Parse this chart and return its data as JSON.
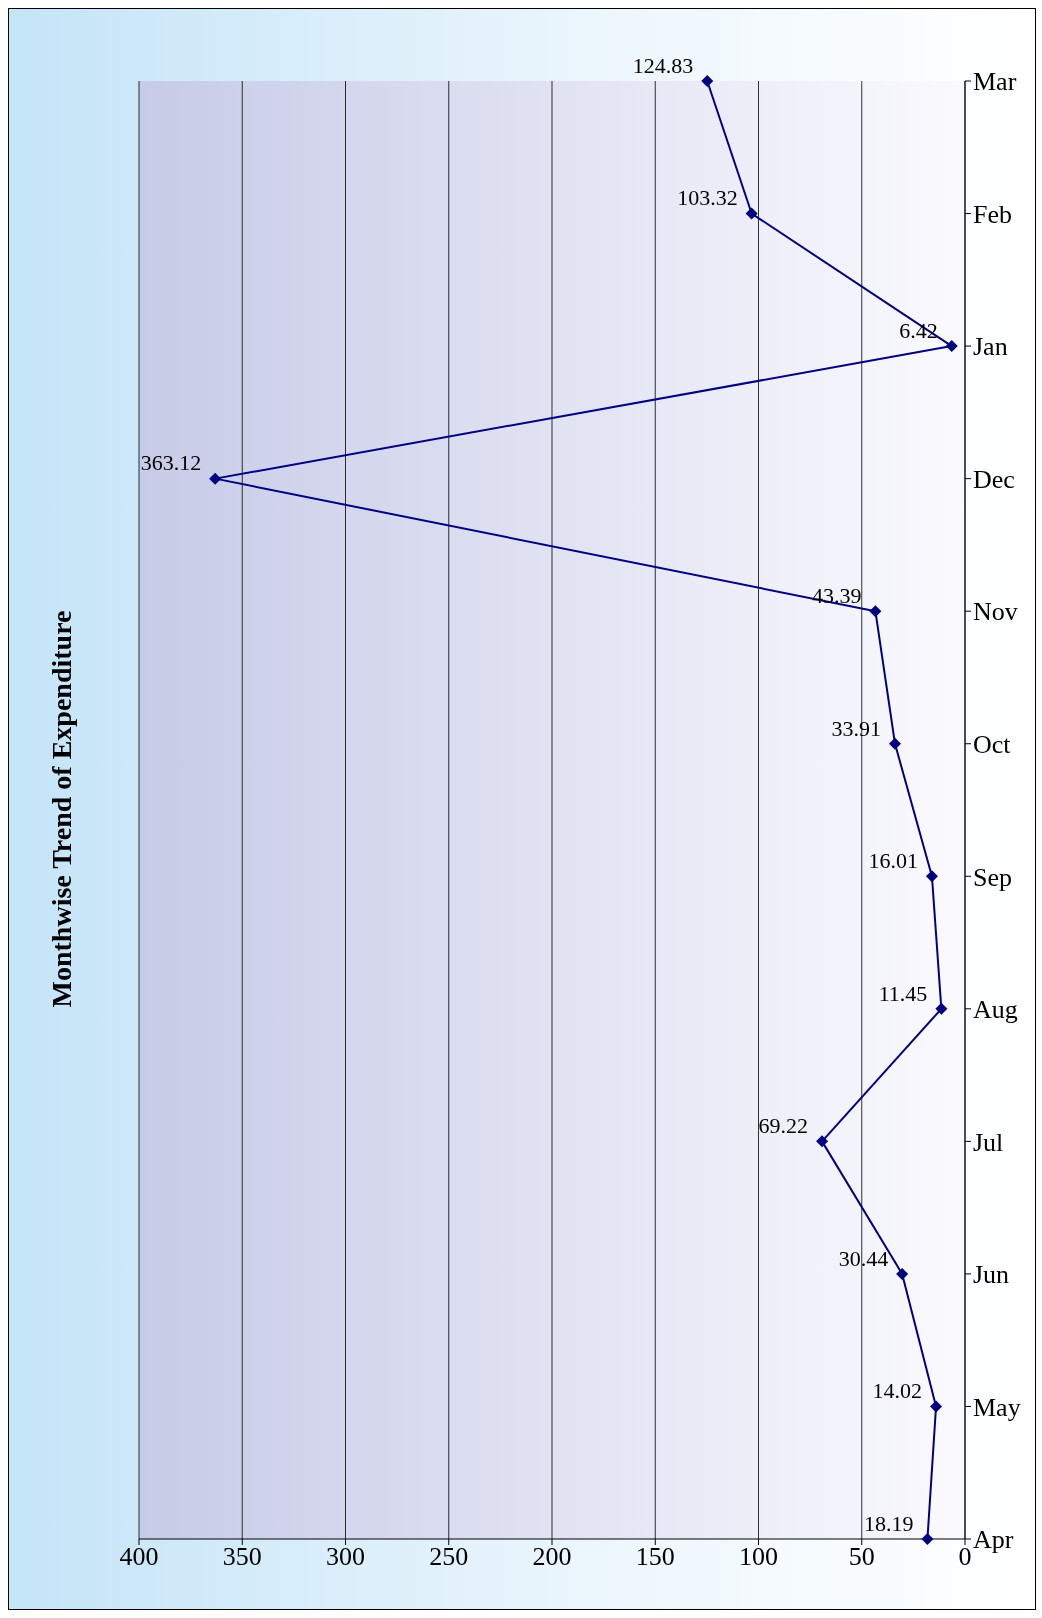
{
  "chart_data": {
    "type": "line",
    "title": "Monthwise Trend of Expenditure",
    "orientation": "horizontal",
    "categories": [
      "Mar",
      "Feb",
      "Jan",
      "Dec",
      "Nov",
      "Oct",
      "Sep",
      "Aug",
      "Jul",
      "Jun",
      "May",
      "Apr"
    ],
    "series": [
      {
        "color": "#000080",
        "values": [
          124.83,
          103.32,
          6.42,
          363.12,
          43.39,
          33.91,
          16.01,
          11.45,
          69.22,
          30.44,
          14.02,
          18.19
        ]
      }
    ],
    "xlim": [
      400,
      0
    ],
    "xticks": [
      0,
      50,
      100,
      150,
      200,
      250,
      300,
      350,
      400
    ],
    "grid": "x",
    "marker": "diamond",
    "line_style": "solid",
    "data_labels": true
  }
}
